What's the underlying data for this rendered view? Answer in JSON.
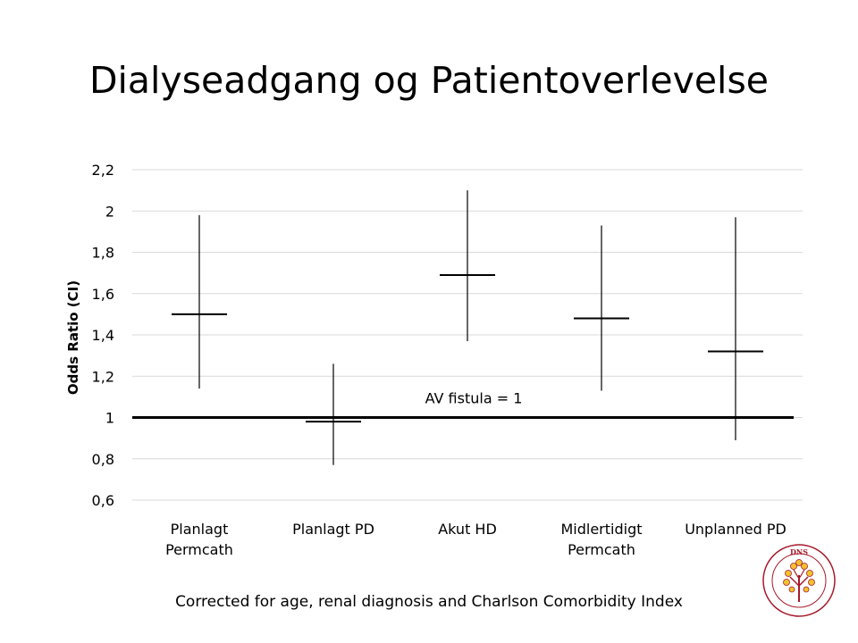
{
  "title": "Dialyseadgang og Patientoverlevelse",
  "footnote": "Corrected for age, renal diagnosis and Charlson Comorbidity Index",
  "logo": {
    "text": "DNS",
    "subtext": "DANSK SELSKAB FOR NEFROLOGI",
    "icon": "tree-seal-icon"
  },
  "colors": {
    "text": "#000000",
    "gridline": "#d9d9d9",
    "logo_accent": "#a7192a",
    "logo_fill": "#f2c12e"
  },
  "chart_data": {
    "type": "scatter",
    "title": "",
    "xlabel": "",
    "ylabel": "Odds Ratio (CI)",
    "ylim": [
      0.6,
      2.2
    ],
    "yticks": [
      0.6,
      0.8,
      1,
      1.2,
      1.4,
      1.6,
      1.8,
      2,
      2.2
    ],
    "ytick_labels": [
      "0,6",
      "0,8",
      "1",
      "1,2",
      "1,4",
      "1,6",
      "1,8",
      "2",
      "2,2"
    ],
    "grid": true,
    "categories": [
      "Planlagt\nPermcath",
      "Planlagt PD",
      "Akut HD",
      "Midlertidigt\nPermcath",
      "Unplanned PD"
    ],
    "series": [
      {
        "odds_ratio": [
          1.5,
          0.98,
          1.69,
          1.48,
          1.32
        ],
        "ci_lower": [
          1.14,
          0.77,
          1.37,
          1.13,
          0.89
        ],
        "ci_upper": [
          1.98,
          1.26,
          2.1,
          1.93,
          1.97
        ]
      }
    ],
    "reference_line": {
      "value": 1,
      "label": "AV fistula = 1"
    }
  }
}
